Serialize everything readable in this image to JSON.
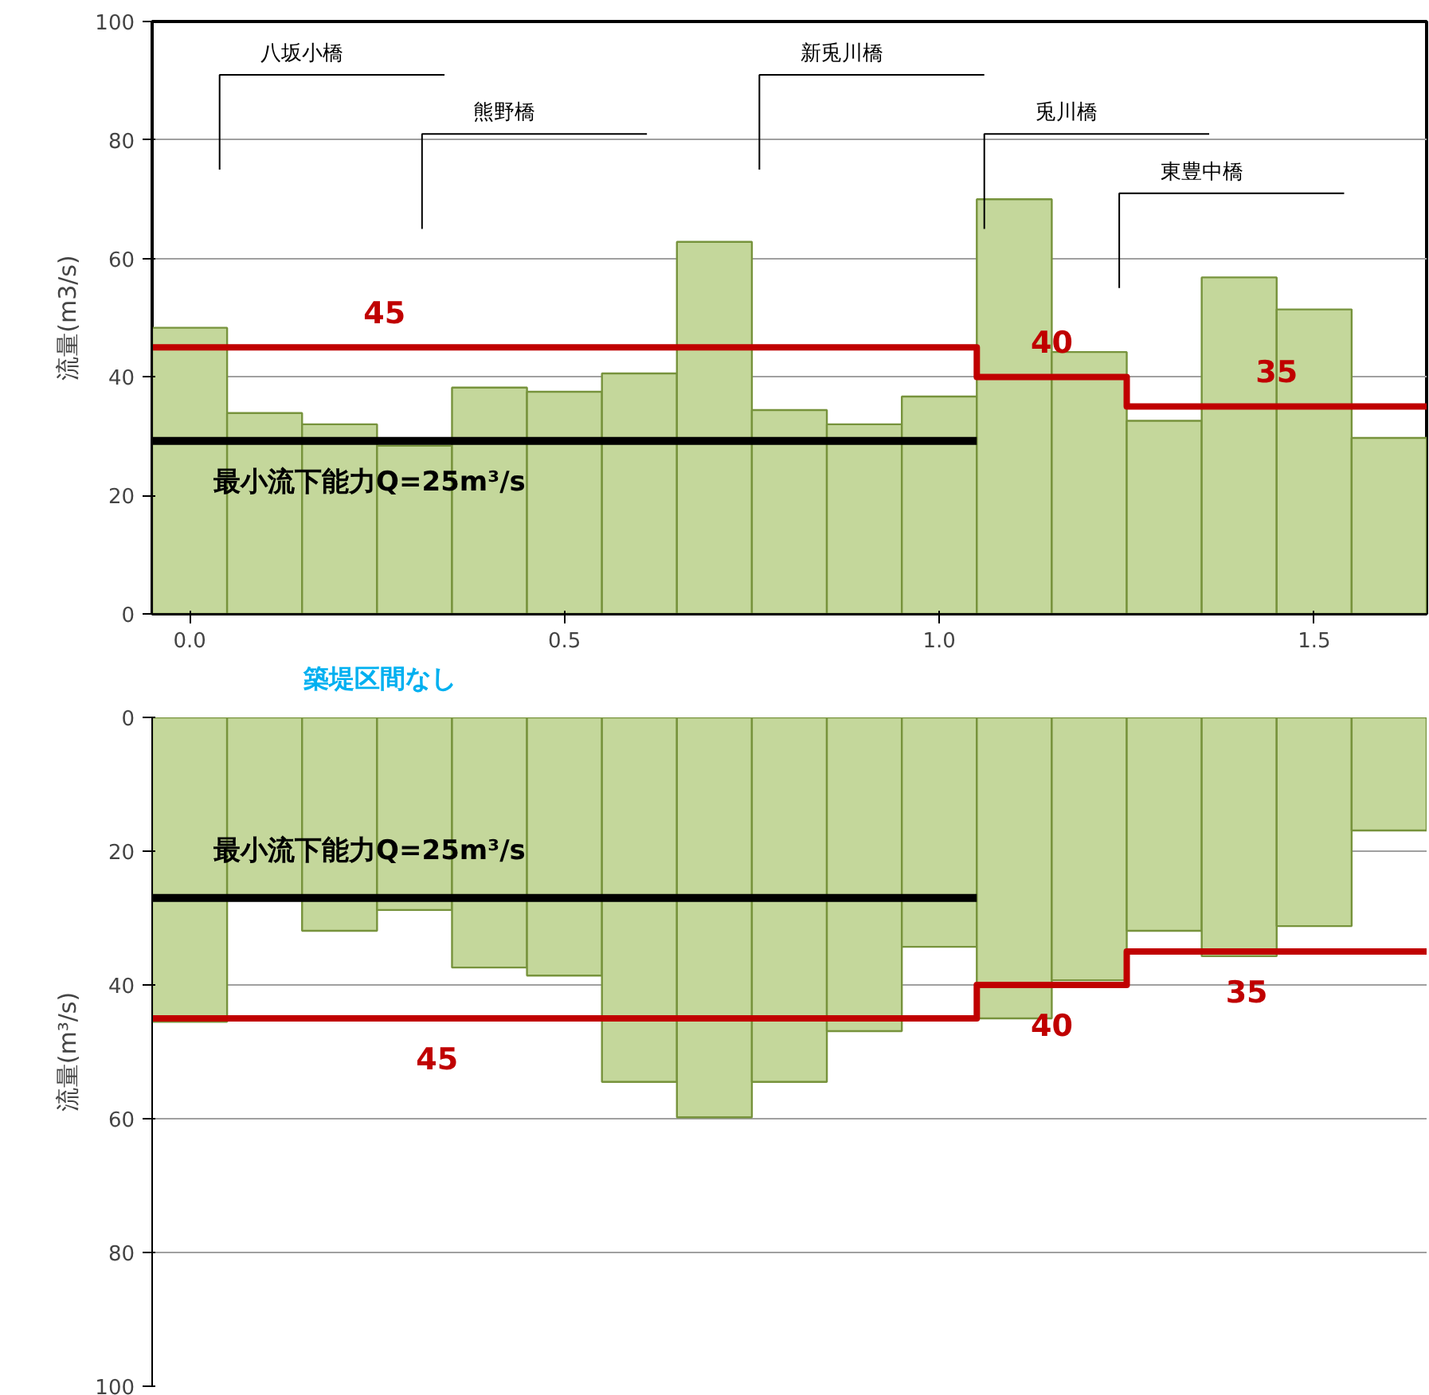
{
  "chart_data": [
    {
      "type": "histogram",
      "ylabel": "流量(m3/s)",
      "bins": [
        -0.05,
        0.05,
        0.15,
        0.25,
        0.35,
        0.45,
        0.55,
        0.65,
        0.75,
        0.85,
        0.95,
        1.05,
        1.15,
        1.25,
        1.35,
        1.45,
        1.55,
        1.65
      ],
      "values": [
        48.3,
        33.9,
        32,
        28.4,
        38.2,
        37.5,
        40.6,
        62.8,
        34.4,
        32,
        36.7,
        70,
        44.2,
        32.6,
        56.8,
        51.4,
        29.7
      ],
      "color": "#c4d79b",
      "series": [
        {
          "type": "step",
          "color": "#c00000",
          "x": [
            -0.05,
            1.05,
            1.25,
            1.65
          ],
          "values": [
            45,
            40,
            35,
            35
          ]
        },
        {
          "type": "line",
          "color": "#000000",
          "x": [
            -0.05,
            1.05
          ],
          "values": [
            29.2,
            29.2
          ]
        }
      ],
      "xlim": [
        -0.05,
        1.65
      ],
      "xticks": [
        {
          "value": 0,
          "label": "0.0"
        },
        {
          "value": 0.5,
          "label": "0.5"
        },
        {
          "value": 1,
          "label": "1.0"
        },
        {
          "value": 1.5,
          "label": "1.5"
        }
      ],
      "ylim": [
        0,
        100
      ],
      "yticks": [
        0,
        20,
        40,
        60,
        80,
        100
      ],
      "grid": "y",
      "ref_lines": [
        {
          "axis": "x",
          "value": 0.04,
          "label": "八坂小橋",
          "color": "#000000"
        },
        {
          "axis": "x",
          "value": 0.31,
          "label": "熊野橋",
          "color": "#000000"
        },
        {
          "axis": "x",
          "value": 0.76,
          "label": "新兎川橋",
          "color": "#000000"
        },
        {
          "axis": "x",
          "value": 1.06,
          "label": "兎川橋",
          "color": "#000000"
        },
        {
          "axis": "x",
          "value": 1.24,
          "label": "東豊中橋",
          "color": "#000000"
        }
      ],
      "annotations": [
        {
          "text": "45",
          "x": 0.26,
          "y": 45
        },
        {
          "text": "40",
          "x": 1.15,
          "y": 40
        },
        {
          "text": "35",
          "x": 1.45,
          "y": 35
        },
        {
          "text": "最小流下能力Q=25m³/s",
          "x": 0.24,
          "y": 29.2
        },
        "築堤区間なし"
      ]
    },
    {
      "type": "histogram",
      "ylabel": "流量(m³/s)",
      "bins": [
        -0.05,
        0.05,
        0.15,
        0.25,
        0.35,
        0.45,
        0.55,
        0.65,
        0.75,
        0.85,
        0.95,
        1.05,
        1.15,
        1.25,
        1.35,
        1.45,
        1.55,
        1.65
      ],
      "values": [
        45.5,
        27,
        31.9,
        28.8,
        37.4,
        38.6,
        54.5,
        59.8,
        54.5,
        46.9,
        34.3,
        45,
        39.3,
        31.9,
        35.7,
        31.2,
        16.9
      ],
      "color": "#c4d79b",
      "series": [
        {
          "type": "step",
          "color": "#c00000",
          "x": [
            -0.05,
            1.05,
            1.25,
            1.65
          ],
          "values": [
            45,
            40,
            35,
            35
          ]
        },
        {
          "type": "line",
          "color": "#000000",
          "x": [
            -0.05,
            1.05
          ],
          "values": [
            27,
            27
          ]
        }
      ],
      "xlim": [
        -0.05,
        1.65
      ],
      "ylim": [
        100,
        0
      ],
      "yticks": [
        0,
        20,
        40,
        60,
        80,
        100
      ],
      "grid": "y",
      "tick_labels": "y",
      "annotations": [
        {
          "text": "45",
          "x": 0.33,
          "y": 45
        },
        {
          "text": "40",
          "x": 1.15,
          "y": 40
        },
        {
          "text": "35",
          "x": 1.41,
          "y": 35
        },
        {
          "text": "最小流下能力Q=25m³/s",
          "x": 0.24,
          "y": 27
        }
      ]
    }
  ]
}
